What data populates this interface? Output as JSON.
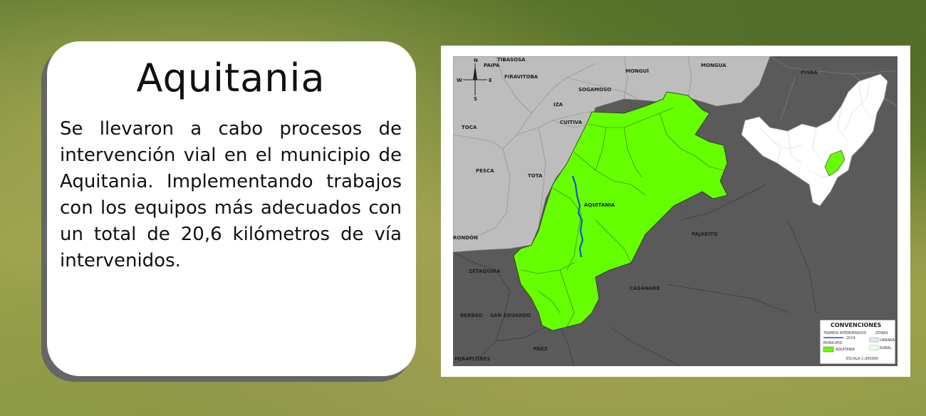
{
  "card": {
    "title": "Aquitania",
    "body": "Se llevaron a cabo procesos de intervención vial en el municipio de Aquitania. Implementando trabajos con los equipos más adecuados con un total de 20,6 kilómetros de vía intervenidos."
  },
  "map": {
    "municipalities": [
      "TIBASOSA",
      "PAIPA",
      "FIRAVITOBA",
      "MONGUÍ",
      "MONGUA",
      "PISBA",
      "SOGAMOSO",
      "IZA",
      "CUITIVA",
      "TOCA",
      "PESCA",
      "TOTA",
      "AQUITANIA",
      "PAJARITO",
      "RONDÓN",
      "ZETAQUIRA",
      "CASANARE",
      "BERBEO",
      "SAN EDUARDO",
      "PÁEZ",
      "MIRAFLORES"
    ],
    "compass": {
      "n": "N",
      "s": "S",
      "e": "E",
      "w": "W"
    },
    "legend": {
      "title": "CONVENCIONES",
      "tramos": "TRAMOS INTERVENIDOS",
      "tramos_year": "2019",
      "zonas": "ZONAS",
      "urbana": "URBANA",
      "rural": "RURAL",
      "municipio": "MUNICIPIO",
      "municipio_item": "AQUITANIA",
      "escala": "ESCALA 1:300000"
    },
    "colors": {
      "highlight": "#66ff00",
      "neighbor": "#bdbdbd",
      "outer": "#5a5a5a",
      "road": "#1a4fd6"
    }
  }
}
